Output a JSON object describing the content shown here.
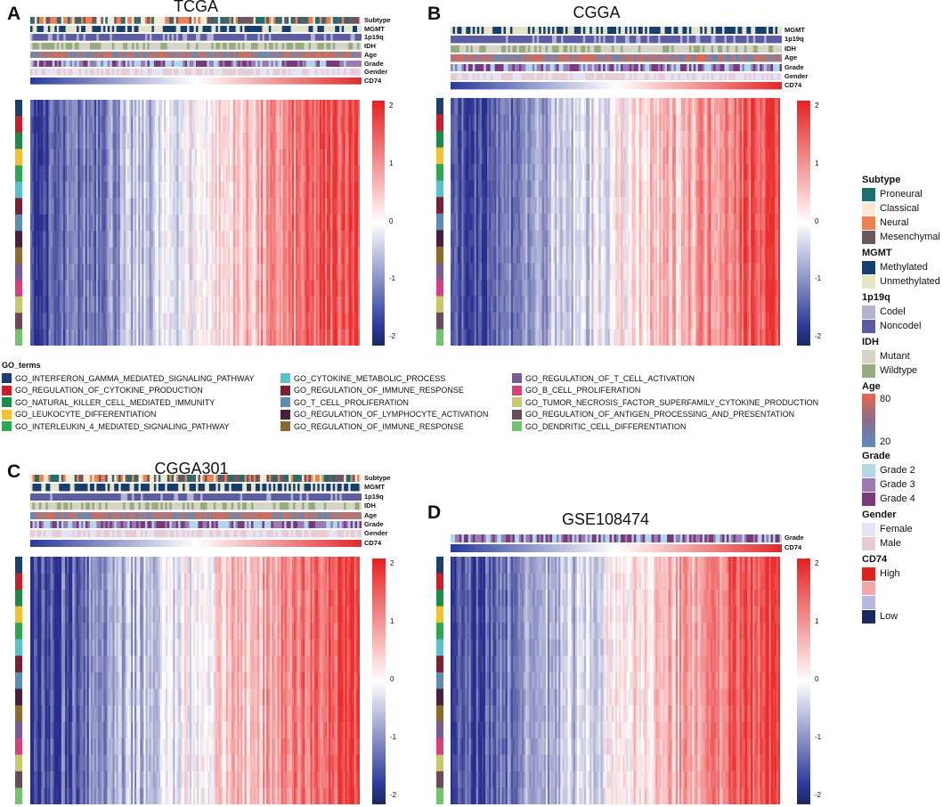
{
  "colors": {
    "Proneural": "#1c6f6c",
    "Classical": "#f7e9d4",
    "Neural": "#ec8254",
    "Mesenchymal": "#6d5660",
    "Methylated": "#163e70",
    "Unmethylated": "#e4e4c8",
    "Codel": "#b4b4d0",
    "Noncodel": "#5c5ca0",
    "Mutant": "#d4d4c8",
    "Wildtype": "#98aa80",
    "Grade2": "#b0d8e8",
    "Grade3": "#9c7ab8",
    "Grade4": "#7a3a78",
    "Female": "#e4e4f4",
    "Male": "#e8ccd4",
    "High": "#e02020",
    "Low": "#1a2a60"
  },
  "legend": {
    "groups": [
      {
        "title": "Subtype",
        "items": [
          {
            "label": "Proneural",
            "color": "#1c6f6c"
          },
          {
            "label": "Classical",
            "color": "#f7e9d4"
          },
          {
            "label": "Neural",
            "color": "#ec8254"
          },
          {
            "label": "Mesenchymal",
            "color": "#6d5660"
          }
        ]
      },
      {
        "title": "MGMT",
        "items": [
          {
            "label": "Methylated",
            "color": "#163e70"
          },
          {
            "label": "Unmethylated",
            "color": "#e4e4c8"
          }
        ]
      },
      {
        "title": "1p19q",
        "items": [
          {
            "label": "Codel",
            "color": "#b4b4d0"
          },
          {
            "label": "Noncodel",
            "color": "#5c5ca0"
          }
        ]
      },
      {
        "title": "IDH",
        "items": [
          {
            "label": "Mutant",
            "color": "#d4d4c8"
          },
          {
            "label": "Wildtype",
            "color": "#98aa80"
          }
        ]
      },
      {
        "title": "Age",
        "range_labels": [
          "80",
          "20"
        ]
      },
      {
        "title": "Grade",
        "items": [
          {
            "label": "Grade 2",
            "color": "#b0d8e8"
          },
          {
            "label": "Grade 3",
            "color": "#9c7ab8"
          },
          {
            "label": "Grade 4",
            "color": "#7a3a78"
          }
        ]
      },
      {
        "title": "Gender",
        "items": [
          {
            "label": "Female",
            "color": "#e4e4f4"
          },
          {
            "label": "Male",
            "color": "#e8ccd4"
          }
        ]
      },
      {
        "title": "CD74",
        "items": [
          {
            "label": "High",
            "color": "#e02020"
          },
          {
            "label": "",
            "color": "#f2a8a8"
          },
          {
            "label": "",
            "color": "#b8b8dc"
          },
          {
            "label": "Low",
            "color": "#1a2a60"
          }
        ]
      }
    ]
  },
  "go_terms": {
    "title": "GO_terms",
    "items": [
      {
        "label": "GO_INTERFERON_GAMMA_MEDIATED_SIGNALING_PATHWAY",
        "color": "#1d3f6e"
      },
      {
        "label": "GO_REGULATION_OF_CYTOKINE_PRODUCTION",
        "color": "#c8202a"
      },
      {
        "label": "GO_NATURAL_KILLER_CELL_MEDIATED_IMMUNITY",
        "color": "#1e8a4a"
      },
      {
        "label": "GO_LEUKOCYTE_DIFFERENTIATION",
        "color": "#f2c230"
      },
      {
        "label": "GO_INTERLEUKIN_4_MEDIATED_SIGNALING_PATHWAY",
        "color": "#2ca84e"
      },
      {
        "label": "GO_CYTOKINE_METABOLIC_PROCESS",
        "color": "#56c4cc"
      },
      {
        "label": "GO_REGULATION_OF_IMMUNE_RESPONSE",
        "color": "#7a2036"
      },
      {
        "label": "GO_T_CELL_PROLIFERATION",
        "color": "#5a8cb4"
      },
      {
        "label": "GO_REGULATION_OF_LYMPHOCYTE_ACTIVATION",
        "color": "#4a1e3e"
      },
      {
        "label": "GO_REGULATION_OF_IMMUNE_RESPONSE",
        "color": "#8c6a2c"
      },
      {
        "label": "GO_REGULATION_OF_T_CELL_ACTIVATION",
        "color": "#7a5a94"
      },
      {
        "label": "GO_B_CELL_PROLIFERATION",
        "color": "#d8407c"
      },
      {
        "label": "GO_TUMOR_NECROSIS_FACTOR_SUPERFAMILY_CYTOKINE_PRODUCTION",
        "color": "#c8c868"
      },
      {
        "label": "GO_REGULATION_OF_ANTIGEN_PROCESSING_AND_PRESENTATION",
        "color": "#6a4a5a"
      },
      {
        "label": "GO_DENDRITIC_CELL_DIFFERENTIATION",
        "color": "#72c46a"
      }
    ]
  },
  "chart_data": [
    {
      "type": "heatmap",
      "panel": "A",
      "title": "TCGA",
      "annotation_tracks": [
        "Subtype",
        "MGMT",
        "1p19q",
        "IDH",
        "Age",
        "Grade",
        "Gender",
        "CD74"
      ],
      "rows": 15,
      "columns": "samples ordered by CD74 expression (low to high)",
      "color_scale": {
        "min": -2,
        "max": 2,
        "ticks": [
          "2",
          "1",
          "0",
          "-1",
          "-2"
        ]
      }
    },
    {
      "type": "heatmap",
      "panel": "B",
      "title": "CGGA",
      "annotation_tracks": [
        "MGMT",
        "1p19q",
        "IDH",
        "Age",
        "Grade",
        "Gender",
        "CD74"
      ],
      "rows": 15,
      "columns": "samples ordered by CD74 expression (low to high)",
      "color_scale": {
        "min": -2,
        "max": 2,
        "ticks": [
          "2",
          "1",
          "0",
          "-1",
          "-2"
        ]
      }
    },
    {
      "type": "heatmap",
      "panel": "C",
      "title": "CGGA301",
      "annotation_tracks": [
        "Subtype",
        "MGMT",
        "1p19q",
        "IDH",
        "Age",
        "Grade",
        "Gender",
        "CD74"
      ],
      "rows": 15,
      "columns": "samples ordered by CD74 expression (low to high)",
      "color_scale": {
        "min": -2,
        "max": 2,
        "ticks": [
          "2",
          "1",
          "0",
          "-1",
          "-2"
        ]
      }
    },
    {
      "type": "heatmap",
      "panel": "D",
      "title": "GSE108474",
      "annotation_tracks": [
        "Grade",
        "CD74"
      ],
      "rows": 15,
      "columns": "samples ordered by CD74 expression (low to high)",
      "color_scale": {
        "min": -2,
        "max": 2,
        "ticks": [
          "2",
          "1",
          "0",
          "-1",
          "-2"
        ]
      }
    }
  ]
}
